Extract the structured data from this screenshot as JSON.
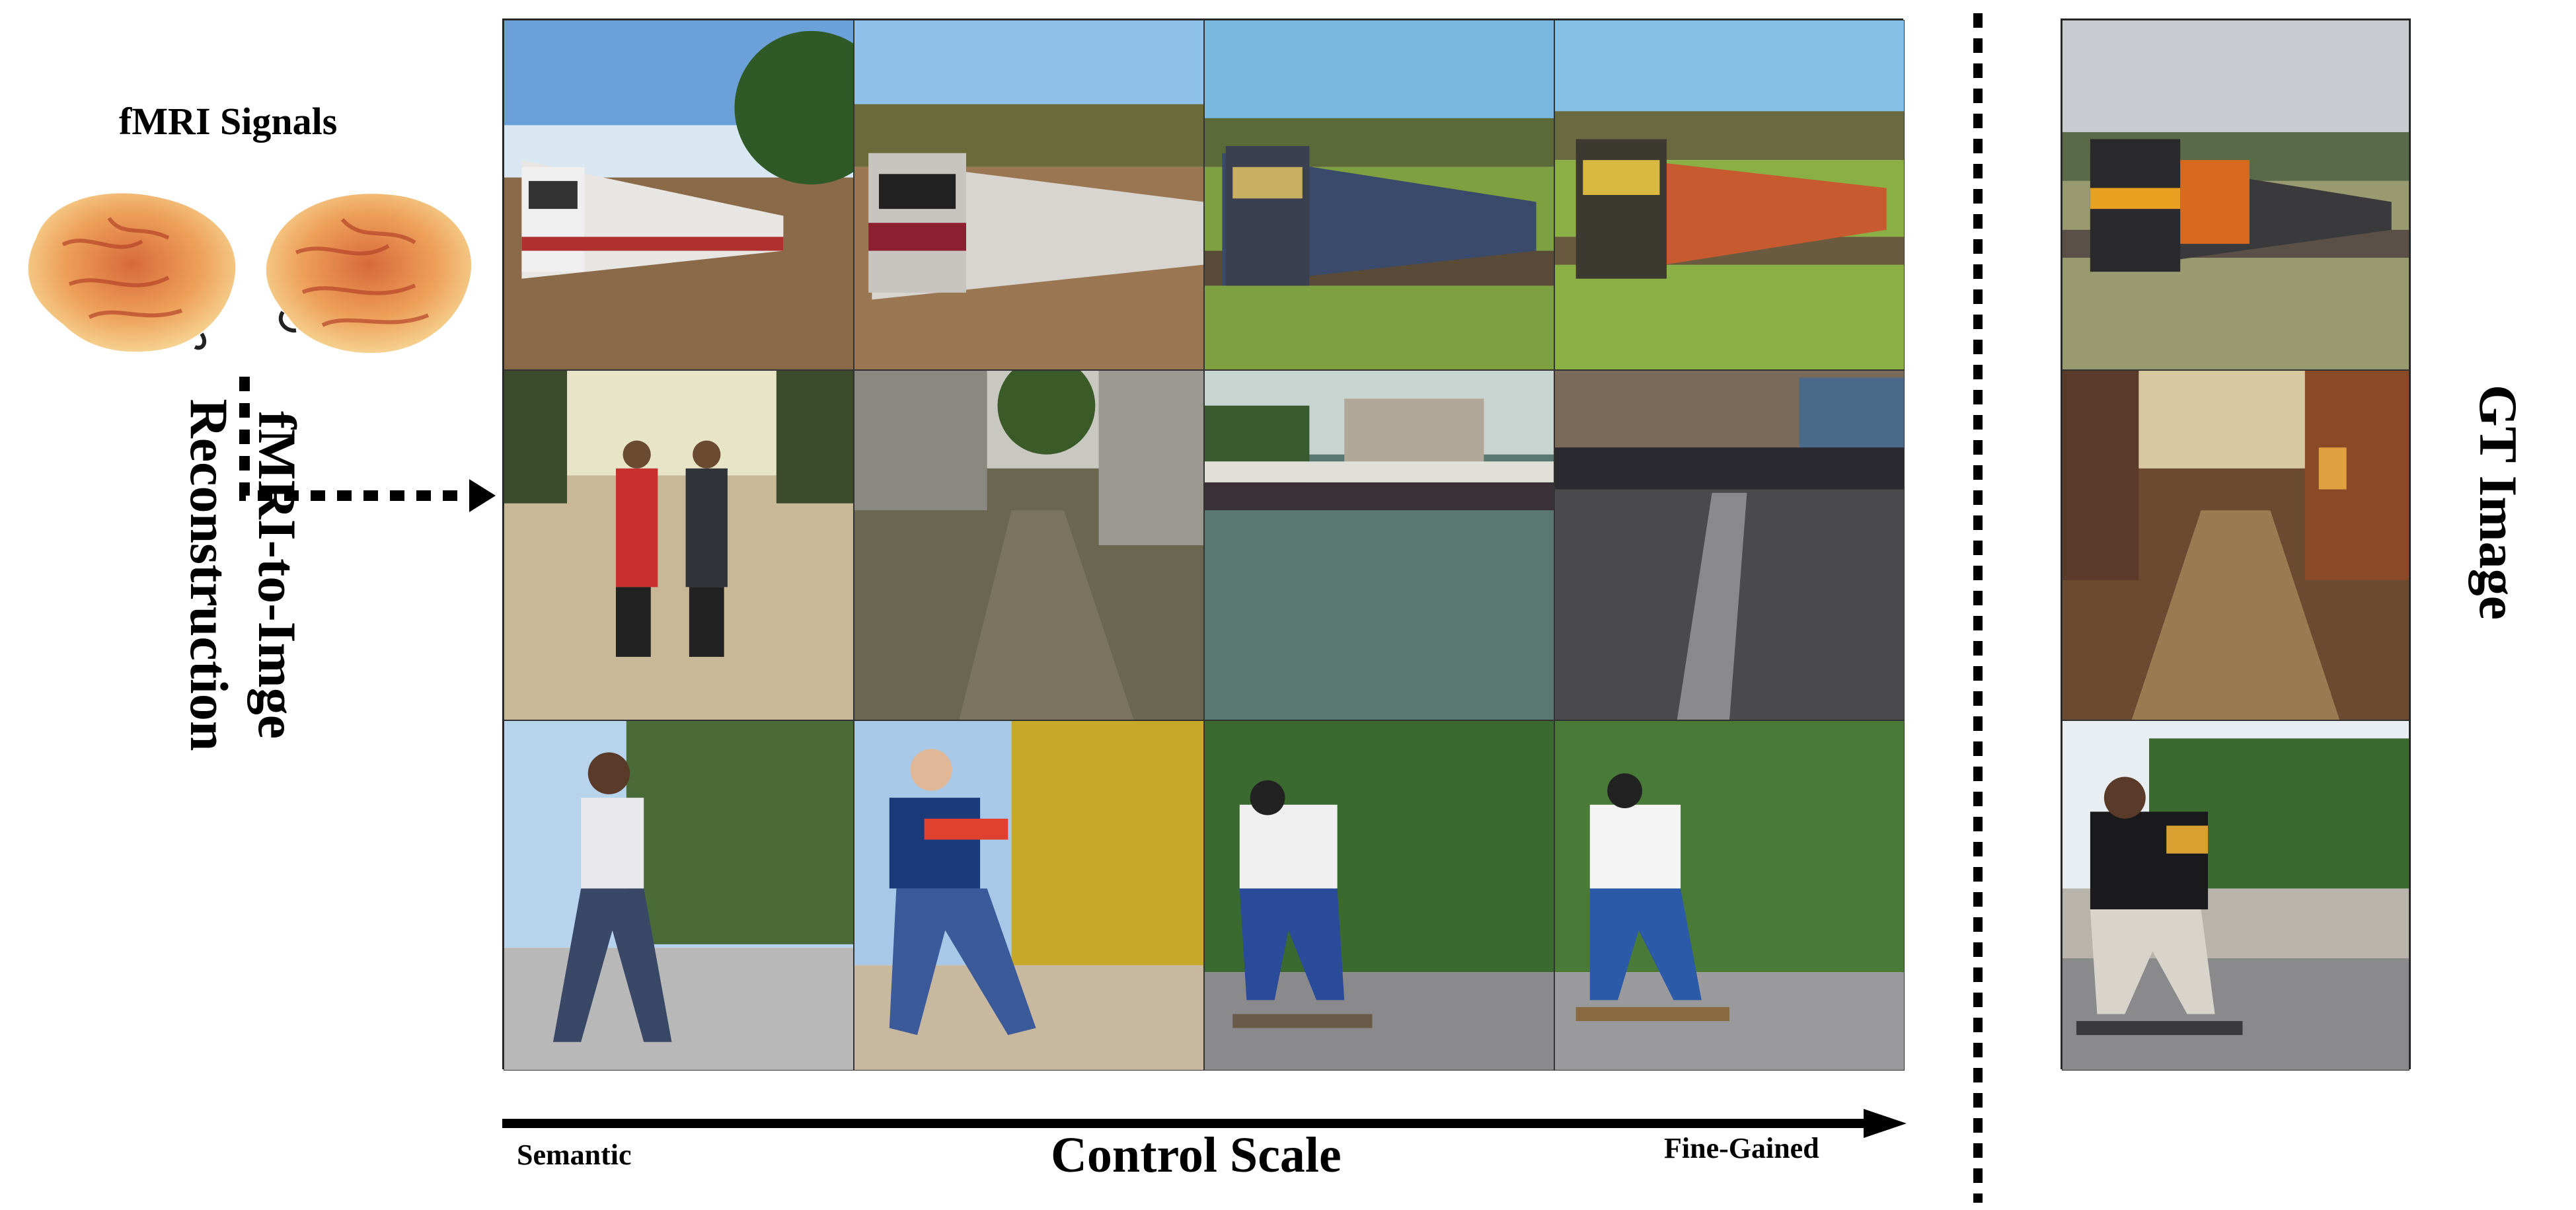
{
  "labels": {
    "fmri_signals": "fMRI Signals",
    "reconstruction": "fMRI-to-Imge Reconstruction",
    "gt_image": "GT Image",
    "control_scale": "Control Scale",
    "semantic": "Semantic",
    "fine_gained": "Fine-Gained"
  },
  "rows": [
    {
      "scene": "train",
      "gt": "train"
    },
    {
      "scene": "street",
      "gt": "street"
    },
    {
      "scene": "skater",
      "gt": "skater"
    }
  ],
  "colors": {
    "brain_fill": "#f0b060",
    "brain_detail": "#c85a30",
    "arrow": "#000000"
  }
}
